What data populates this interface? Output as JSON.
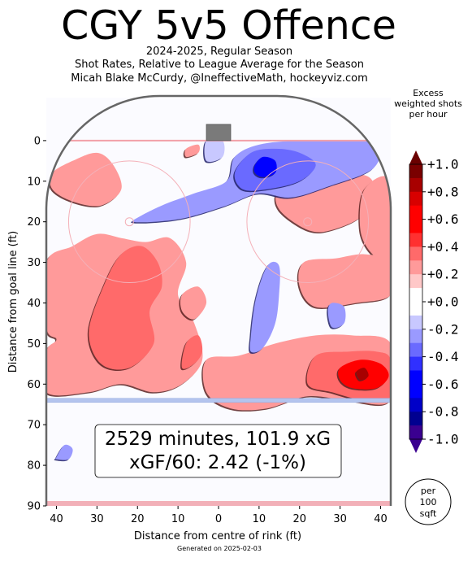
{
  "header": {
    "title": "CGY 5v5 Offence",
    "subtitle_1": "2024-2025, Regular Season",
    "subtitle_2": "Shot Rates, Relative to League Average for the Season",
    "subtitle_3": "Micah Blake McCurdy, @IneffectiveMath, hockeyviz.com"
  },
  "colorbar": {
    "title_line_1": "Excess",
    "title_line_2": "weighted shots",
    "title_line_3": "per hour"
  },
  "summary": {
    "line_1": "2529 minutes, 101.9 xG",
    "line_2": "xGF/60: 2.42 (-1%)"
  },
  "per_area": {
    "line_1": "per",
    "line_2": "100",
    "line_3": "sqft"
  },
  "footer": {
    "generated": "Generated on 2025-02-03"
  },
  "chart_data": {
    "type": "heatmap",
    "title": "CGY 5v5 Offence",
    "xlabel": "Distance from centre of rink (ft)",
    "ylabel": "Distance from goal line (ft)",
    "xlim": [
      -42.5,
      42.5
    ],
    "ylim": [
      90,
      -11
    ],
    "x_ticks": [
      -40,
      -30,
      -20,
      -10,
      0,
      10,
      20,
      30,
      40
    ],
    "x_tick_labels": [
      "40",
      "30",
      "20",
      "10",
      "0",
      "10",
      "20",
      "30",
      "40"
    ],
    "y_ticks": [
      0,
      10,
      20,
      30,
      40,
      50,
      60,
      70,
      80,
      90
    ],
    "y_tick_labels": [
      "0",
      "10",
      "20",
      "30",
      "40",
      "50",
      "60",
      "70",
      "80",
      "90"
    ],
    "colorbar_ticks": [
      1.0,
      0.8,
      0.6,
      0.4,
      0.2,
      0.0,
      -0.2,
      -0.4,
      -0.6,
      -0.8,
      -1.0
    ],
    "colorbar_tick_labels": [
      "+1.0",
      "+0.8",
      "+0.6",
      "+0.4",
      "+0.2",
      "+0.0",
      "-0.2",
      "-0.4",
      "-0.6",
      "-0.8",
      "-1.0"
    ],
    "colorbar_range": [
      -1.0,
      1.0
    ],
    "colors": {
      "positive": [
        "#ffc8c8",
        "#ff9a9a",
        "#ff6a6a",
        "#ff3030",
        "#ff0000",
        "#d80000",
        "#a80000",
        "#7a0000"
      ],
      "negative": [
        "#c8c8ff",
        "#9a9aff",
        "#6a6aff",
        "#3030ff",
        "#0000ff",
        "#0000c8",
        "#000090",
        "#3a0090"
      ],
      "neutral": "#ffffff"
    },
    "regions": [
      {
        "sign": "positive",
        "level": 0.15,
        "points": [
          [
            -41,
            8
          ],
          [
            -36,
            5
          ],
          [
            -30,
            3
          ],
          [
            -26,
            6
          ],
          [
            -24,
            12
          ],
          [
            -29,
            16
          ],
          [
            -36,
            15
          ],
          [
            -41,
            12
          ]
        ]
      },
      {
        "sign": "positive",
        "level": 0.15,
        "points": [
          [
            -42.5,
            30
          ],
          [
            -36,
            26
          ],
          [
            -30,
            23
          ],
          [
            -24,
            24
          ],
          [
            -18,
            25
          ],
          [
            -12,
            24
          ],
          [
            -8,
            30
          ],
          [
            -10,
            38
          ],
          [
            -6,
            45
          ],
          [
            -4,
            54
          ],
          [
            -9,
            60
          ],
          [
            -16,
            62
          ],
          [
            -24,
            60
          ],
          [
            -32,
            62
          ],
          [
            -42.5,
            62
          ],
          [
            -42.5,
            52
          ],
          [
            -40,
            49
          ],
          [
            -42.5,
            46
          ]
        ]
      },
      {
        "sign": "positive",
        "level": 0.3,
        "points": [
          [
            -28,
            35
          ],
          [
            -24,
            28
          ],
          [
            -19,
            26
          ],
          [
            -15,
            30
          ],
          [
            -14,
            36
          ],
          [
            -17,
            42
          ],
          [
            -16,
            50
          ],
          [
            -22,
            56
          ],
          [
            -29,
            55
          ],
          [
            -32,
            47
          ]
        ]
      },
      {
        "sign": "positive",
        "level": 0.15,
        "points": [
          [
            -9,
            38
          ],
          [
            -5,
            36
          ],
          [
            -3,
            40
          ],
          [
            -6,
            44
          ],
          [
            -9,
            42
          ]
        ]
      },
      {
        "sign": "positive",
        "level": 0.3,
        "points": [
          [
            -8,
            50
          ],
          [
            -5,
            48
          ],
          [
            -4,
            52
          ],
          [
            -6,
            55
          ],
          [
            -9,
            56
          ]
        ]
      },
      {
        "sign": "positive",
        "level": 0.15,
        "points": [
          [
            -8,
            2
          ],
          [
            -5,
            1
          ],
          [
            -5,
            3
          ],
          [
            -8,
            4
          ]
        ]
      },
      {
        "sign": "positive",
        "level": 0.15,
        "points": [
          [
            15,
            12
          ],
          [
            23,
            9
          ],
          [
            32,
            8
          ],
          [
            38,
            10
          ],
          [
            36,
            18
          ],
          [
            28,
            22
          ],
          [
            22,
            22
          ],
          [
            15,
            17
          ]
        ]
      },
      {
        "sign": "positive",
        "level": 0.15,
        "points": [
          [
            36,
            12
          ],
          [
            42.5,
            10
          ],
          [
            42.5,
            30
          ],
          [
            38,
            28
          ],
          [
            35,
            22
          ]
        ]
      },
      {
        "sign": "positive",
        "level": 0.15,
        "points": [
          [
            21,
            30
          ],
          [
            29,
            29
          ],
          [
            36,
            28
          ],
          [
            42.5,
            30
          ],
          [
            42.5,
            38
          ],
          [
            34,
            40
          ],
          [
            24,
            41
          ],
          [
            20,
            36
          ]
        ]
      },
      {
        "sign": "positive",
        "level": 0.15,
        "points": [
          [
            -3,
            54
          ],
          [
            5,
            53
          ],
          [
            14,
            50
          ],
          [
            24,
            48
          ],
          [
            33,
            48
          ],
          [
            42.5,
            50
          ],
          [
            42.5,
            64
          ],
          [
            32,
            64
          ],
          [
            22,
            63
          ],
          [
            12,
            66
          ],
          [
            3,
            66
          ],
          [
            -3,
            62
          ]
        ]
      },
      {
        "sign": "positive",
        "level": 0.35,
        "points": [
          [
            24,
            53
          ],
          [
            32,
            52
          ],
          [
            39,
            52
          ],
          [
            42.5,
            54
          ],
          [
            42.5,
            63
          ],
          [
            36,
            64
          ],
          [
            28,
            62
          ],
          [
            22,
            60
          ]
        ]
      },
      {
        "sign": "positive",
        "level": 0.6,
        "points": [
          [
            30,
            56
          ],
          [
            35,
            54
          ],
          [
            40,
            55
          ],
          [
            42,
            58
          ],
          [
            39,
            61
          ],
          [
            33,
            61
          ],
          [
            30,
            59
          ]
        ]
      },
      {
        "sign": "positive",
        "level": 0.85,
        "points": [
          [
            34,
            57
          ],
          [
            36,
            56
          ],
          [
            37,
            58
          ],
          [
            35,
            59
          ]
        ]
      },
      {
        "sign": "negative",
        "level": -0.15,
        "points": [
          [
            -20,
            19
          ],
          [
            -14,
            16
          ],
          [
            -6,
            13
          ],
          [
            2,
            10
          ],
          [
            4,
            4
          ],
          [
            10,
            1
          ],
          [
            20,
            0
          ],
          [
            34,
            0
          ],
          [
            40,
            1
          ],
          [
            38,
            7
          ],
          [
            28,
            11
          ],
          [
            18,
            14
          ],
          [
            10,
            13
          ],
          [
            2,
            16
          ],
          [
            -8,
            19
          ],
          [
            -16,
            20
          ],
          [
            -21,
            20
          ]
        ]
      },
      {
        "sign": "negative",
        "level": -0.3,
        "points": [
          [
            4,
            8
          ],
          [
            8,
            3
          ],
          [
            14,
            2
          ],
          [
            20,
            3
          ],
          [
            24,
            6
          ],
          [
            20,
            10
          ],
          [
            12,
            12
          ],
          [
            6,
            12
          ]
        ]
      },
      {
        "sign": "negative",
        "level": -0.55,
        "points": [
          [
            9,
            6
          ],
          [
            11,
            4
          ],
          [
            14,
            5
          ],
          [
            14,
            8
          ],
          [
            11,
            9
          ],
          [
            9,
            8
          ]
        ]
      },
      {
        "sign": "negative",
        "level": -0.15,
        "points": [
          [
            8,
            48
          ],
          [
            9,
            40
          ],
          [
            11,
            33
          ],
          [
            13,
            30
          ],
          [
            15,
            31
          ],
          [
            15,
            37
          ],
          [
            14,
            45
          ],
          [
            11,
            51
          ],
          [
            8,
            52
          ]
        ]
      },
      {
        "sign": "negative",
        "level": -0.15,
        "points": [
          [
            27,
            42
          ],
          [
            28,
            40
          ],
          [
            31,
            41
          ],
          [
            31,
            45
          ],
          [
            28,
            46
          ]
        ]
      },
      {
        "sign": "negative",
        "level": -0.15,
        "points": [
          [
            -40,
            78
          ],
          [
            -38,
            75
          ],
          [
            -36,
            76
          ],
          [
            -37,
            78.5
          ],
          [
            -40,
            78.5
          ]
        ]
      },
      {
        "sign": "negative",
        "level": -0.1,
        "points": [
          [
            -3,
            0
          ],
          [
            1,
            0
          ],
          [
            1,
            4
          ],
          [
            -3,
            5
          ]
        ]
      }
    ]
  }
}
